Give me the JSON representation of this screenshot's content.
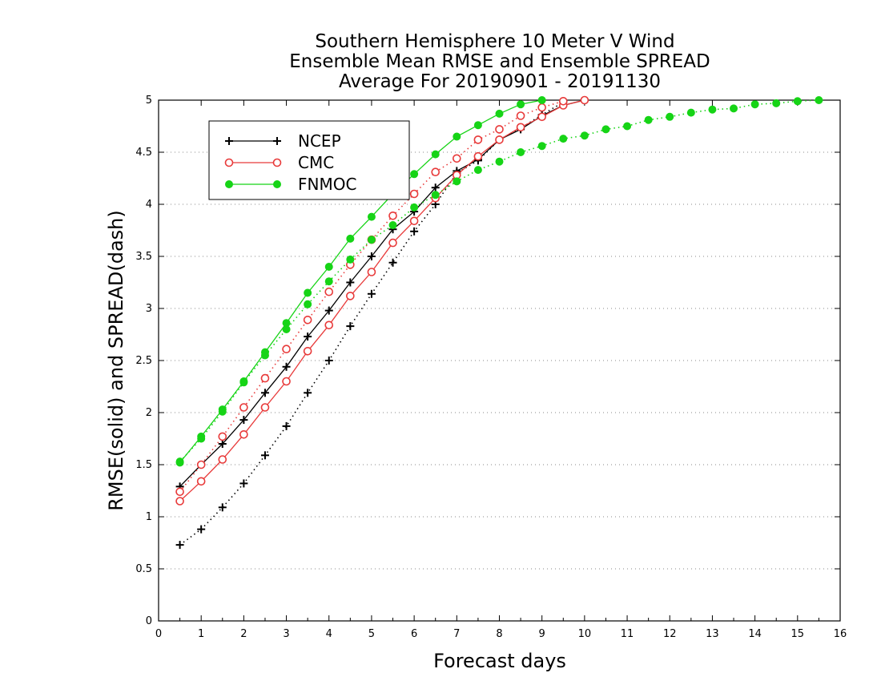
{
  "chart_data": {
    "type": "line",
    "title_lines": [
      "Southern Hemisphere 10 Meter V Wind",
      "Ensemble Mean RMSE and Ensemble SPREAD",
      "Average For 20190901 - 20191130"
    ],
    "xlabel": "Forecast days",
    "ylabel": "RMSE(solid) and SPREAD(dash)",
    "xlim": [
      0,
      16
    ],
    "ylim": [
      0,
      5
    ],
    "x_ticks": [
      "0",
      "1",
      "2",
      "3",
      "4",
      "5",
      "6",
      "7",
      "8",
      "9",
      "10",
      "11",
      "12",
      "13",
      "14",
      "15",
      "16"
    ],
    "y_ticks": [
      "0",
      "0.5",
      "1",
      "1.5",
      "2",
      "2.5",
      "3",
      "3.5",
      "4",
      "4.5",
      "5"
    ],
    "grid": "horizontal dotted",
    "legend_position": "top-left",
    "series": [
      {
        "name": "NCEP",
        "marker": "plus",
        "color": "#000000",
        "rmse": {
          "x": [
            0.5,
            1,
            1.5,
            2,
            2.5,
            3,
            3.5,
            4,
            4.5,
            5,
            5.5,
            6,
            6.5,
            7,
            7.5,
            8,
            8.5,
            9,
            9.5,
            10
          ],
          "y": [
            1.29,
            1.5,
            1.7,
            1.93,
            2.19,
            2.44,
            2.73,
            2.98,
            3.25,
            3.5,
            3.76,
            3.93,
            4.16,
            4.32,
            4.43,
            4.62,
            4.72,
            4.85,
            4.95,
            5.0
          ]
        },
        "spread": {
          "x": [
            0.5,
            1,
            1.5,
            2,
            2.5,
            3,
            3.5,
            4,
            4.5,
            5,
            5.5,
            6,
            6.5,
            7,
            7.5,
            8,
            8.5,
            9,
            9.5
          ],
          "y": [
            0.73,
            0.88,
            1.09,
            1.32,
            1.59,
            1.87,
            2.19,
            2.5,
            2.83,
            3.14,
            3.44,
            3.74,
            4.0,
            4.3,
            4.42,
            4.62,
            4.73,
            4.86,
            4.98
          ]
        }
      },
      {
        "name": "CMC",
        "marker": "open-circle",
        "color": "#e83a3a",
        "rmse": {
          "x": [
            0.5,
            1,
            1.5,
            2,
            2.5,
            3,
            3.5,
            4,
            4.5,
            5,
            5.5,
            6,
            6.5,
            7,
            7.5,
            8,
            8.5,
            9,
            9.5,
            10
          ],
          "y": [
            1.15,
            1.34,
            1.55,
            1.79,
            2.05,
            2.3,
            2.59,
            2.84,
            3.12,
            3.35,
            3.63,
            3.84,
            4.06,
            4.28,
            4.46,
            4.62,
            4.74,
            4.84,
            4.95,
            5.0
          ]
        },
        "spread": {
          "x": [
            0.5,
            1,
            1.5,
            2,
            2.5,
            3,
            3.5,
            4,
            4.5,
            5,
            5.5,
            6,
            6.5,
            7,
            7.5,
            8,
            8.5,
            9,
            9.5
          ],
          "y": [
            1.24,
            1.5,
            1.77,
            2.05,
            2.33,
            2.61,
            2.89,
            3.16,
            3.42,
            3.66,
            3.89,
            4.1,
            4.31,
            4.44,
            4.62,
            4.72,
            4.85,
            4.93,
            4.99
          ]
        }
      },
      {
        "name": "FNMOC",
        "marker": "filled-circle",
        "color": "#16d416",
        "rmse": {
          "x": [
            0.5,
            1,
            1.5,
            2,
            2.5,
            3,
            3.5,
            4,
            4.5,
            5,
            5.5,
            6,
            6.5,
            7,
            7.5,
            8,
            8.5,
            9
          ],
          "y": [
            1.52,
            1.77,
            2.03,
            2.3,
            2.58,
            2.86,
            3.15,
            3.4,
            3.67,
            3.88,
            4.1,
            4.29,
            4.48,
            4.65,
            4.76,
            4.87,
            4.96,
            5.0
          ]
        },
        "spread": {
          "x": [
            0.5,
            1,
            1.5,
            2,
            2.5,
            3,
            3.5,
            4,
            4.5,
            5,
            5.5,
            6,
            6.5,
            7,
            7.5,
            8,
            8.5,
            9,
            9.5,
            10,
            10.5,
            11,
            11.5,
            12,
            12.5,
            13,
            13.5,
            14,
            14.5,
            15,
            15.5
          ],
          "y": [
            1.53,
            1.75,
            2.01,
            2.29,
            2.55,
            2.8,
            3.04,
            3.26,
            3.47,
            3.66,
            3.8,
            3.97,
            4.09,
            4.22,
            4.33,
            4.41,
            4.5,
            4.56,
            4.63,
            4.66,
            4.72,
            4.75,
            4.81,
            4.84,
            4.88,
            4.91,
            4.92,
            4.96,
            4.97,
            4.99,
            5.0
          ]
        }
      }
    ]
  }
}
